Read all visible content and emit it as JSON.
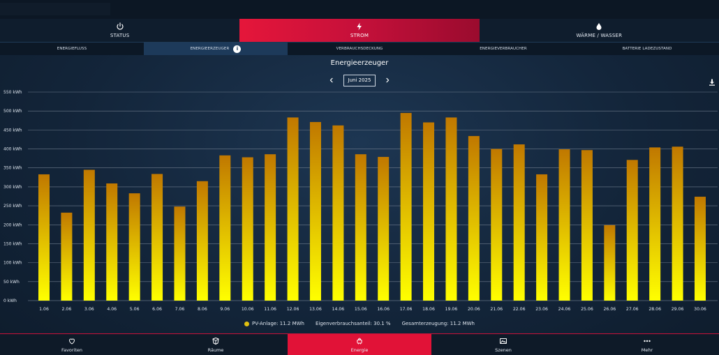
{
  "main_tabs": [
    {
      "label": "STATUS",
      "icon": "power-icon"
    },
    {
      "label": "STROM",
      "icon": "bolt-icon"
    },
    {
      "label": "WÄRME / WASSER",
      "icon": "drop-icon"
    }
  ],
  "sub_tabs": [
    {
      "label": "ENERGIEFLUSS"
    },
    {
      "label": "ENERGIEERZEUGER"
    },
    {
      "label": "VERBRAUCHSDECKUNG"
    },
    {
      "label": "ENERGIEVERBRAUCHER"
    },
    {
      "label": "BATTERIE LADEZUSTAND"
    }
  ],
  "chart_title": "Energieerzeuger",
  "date_label": "Juni 2025",
  "colors": {
    "accent": "#e11237",
    "bar_top": "#c07800",
    "bar_bottom": "#ffff00",
    "legend_dot": "#e0c010"
  },
  "chart_data": {
    "type": "bar",
    "title": "Energieerzeuger",
    "categories": [
      "1.06",
      "2.06",
      "3.06",
      "4.06",
      "5.06",
      "6.06",
      "7.06",
      "8.06",
      "9.06",
      "10.06",
      "11.06",
      "12.06",
      "13.06",
      "14.06",
      "15.06",
      "16.06",
      "17.06",
      "18.06",
      "19.06",
      "20.06",
      "21.06",
      "22.06",
      "23.06",
      "24.06",
      "25.06",
      "26.06",
      "27.06",
      "28.06",
      "29.06",
      "30.06"
    ],
    "series": [
      {
        "name": "PV-Anlage",
        "values": [
          333,
          232,
          345,
          309,
          283,
          334,
          248,
          315,
          383,
          378,
          386,
          483,
          471,
          462,
          386,
          379,
          495,
          470,
          483,
          434,
          400,
          412,
          333,
          399,
          397,
          199,
          371,
          404,
          406,
          274
        ]
      }
    ],
    "yticks": [
      "0 kWh",
      "50 kWh",
      "100 kWh",
      "150 kWh",
      "200 kWh",
      "250 kWh",
      "300 kWh",
      "350 kWh",
      "400 kWh",
      "450 kWh",
      "500 kWh",
      "550 kWh"
    ],
    "ylim": [
      0,
      550
    ],
    "grid": true,
    "legend_position": "bottom"
  },
  "legend": {
    "pv": "PV-Anlage: 11.2 MWh",
    "self_use": "Eigenverbrauchsanteil: 30.1 %",
    "total": "Gesamterzeugung: 11.2 MWh"
  },
  "bottom_nav": [
    {
      "label": "Favoriten",
      "icon": "heart-icon"
    },
    {
      "label": "Räume",
      "icon": "rooms-icon"
    },
    {
      "label": "Energie",
      "icon": "energy-icon"
    },
    {
      "label": "Szenen",
      "icon": "scenes-icon"
    },
    {
      "label": "Mehr",
      "icon": "more-icon"
    }
  ]
}
